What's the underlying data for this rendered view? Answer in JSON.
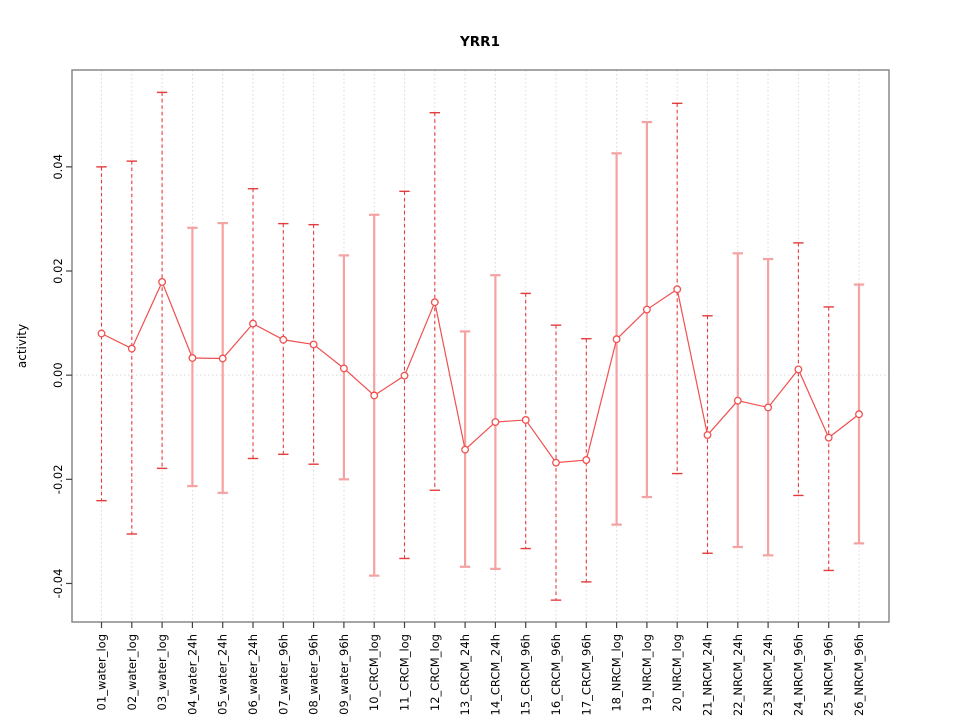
{
  "chart_data": {
    "type": "line",
    "title": "YRR1",
    "xlabel": "",
    "ylabel": "activity",
    "legend": "none",
    "grid": "vertical dotted gridline at every category; dotted horizontal line at y=0",
    "ylim": [
      -0.0474,
      0.0586
    ],
    "yticks": [
      {
        "value": -0.04,
        "label": "-0.04"
      },
      {
        "value": -0.02,
        "label": "-0.02"
      },
      {
        "value": 0.0,
        "label": "0.00"
      },
      {
        "value": 0.02,
        "label": "0.02"
      },
      {
        "value": 0.04,
        "label": "0.04"
      }
    ],
    "categories": [
      "01_water_log",
      "02_water_log",
      "03_water_log",
      "04_water_24h",
      "05_water_24h",
      "06_water_24h",
      "07_water_96h",
      "08_water_96h",
      "09_water_96h",
      "10_CRCM_log",
      "11_CRCM_log",
      "12_CRCM_log",
      "13_CRCM_24h",
      "14_CRCM_24h",
      "15_CRCM_96h",
      "16_CRCM_96h",
      "17_CRCM_96h",
      "18_NRCM_log",
      "19_NRCM_log",
      "20_NRCM_log",
      "21_NRCM_24h",
      "22_NRCM_24h",
      "23_NRCM_24h",
      "24_NRCM_96h",
      "25_NRCM_96h",
      "26_NRCM_96h"
    ],
    "series": [
      {
        "name": "activity",
        "marker": "open-circle",
        "values": [
          0.008,
          0.0051,
          0.0179,
          0.0033,
          0.0032,
          0.0099,
          0.0068,
          0.0059,
          0.0013,
          -0.0039,
          -0.0001,
          0.014,
          -0.0143,
          -0.009,
          -0.0086,
          -0.0168,
          -0.0163,
          0.0069,
          0.0126,
          0.0165,
          -0.0115,
          -0.0049,
          -0.0062,
          0.0011,
          -0.012,
          -0.0075
        ],
        "error_high": [
          0.04,
          0.0411,
          0.0543,
          0.0283,
          0.0292,
          0.0358,
          0.0291,
          0.0289,
          0.023,
          0.0308,
          0.0353,
          0.0504,
          0.0084,
          0.0192,
          0.0157,
          0.0096,
          0.007,
          0.0426,
          0.0486,
          0.0522,
          0.0114,
          0.0234,
          0.0223,
          0.0254,
          0.0131,
          0.0174
        ],
        "error_low": [
          -0.0241,
          -0.0305,
          -0.0179,
          -0.0213,
          -0.0226,
          -0.016,
          -0.0152,
          -0.0171,
          -0.02,
          -0.0385,
          -0.0352,
          -0.0221,
          -0.0368,
          -0.0372,
          -0.0333,
          -0.0432,
          -0.0397,
          -0.0287,
          -0.0234,
          -0.0189,
          -0.0342,
          -0.033,
          -0.0346,
          -0.0231,
          -0.0375,
          -0.0323
        ],
        "error_bar_styles": [
          "dashed",
          "dashed",
          "dashed",
          "solid",
          "solid",
          "dashed",
          "dashed",
          "dashed",
          "solid",
          "solid",
          "dashed",
          "dashed",
          "solid",
          "solid",
          "dashed",
          "dashed",
          "dashed",
          "solid",
          "solid",
          "dashed",
          "dashed",
          "solid",
          "solid",
          "dashed",
          "dashed",
          "solid"
        ]
      }
    ],
    "colors": {
      "series_line": "#f05050",
      "marker_stroke": "#f05050",
      "error_bar_solid": "#f5a2a2",
      "error_bar_dashed": "#e43c3c",
      "gridline": "#d9d9d9",
      "zero_line": "#d9d9d9",
      "frame": "#808080",
      "tick_mark": "#404040",
      "text": "#000000"
    }
  }
}
